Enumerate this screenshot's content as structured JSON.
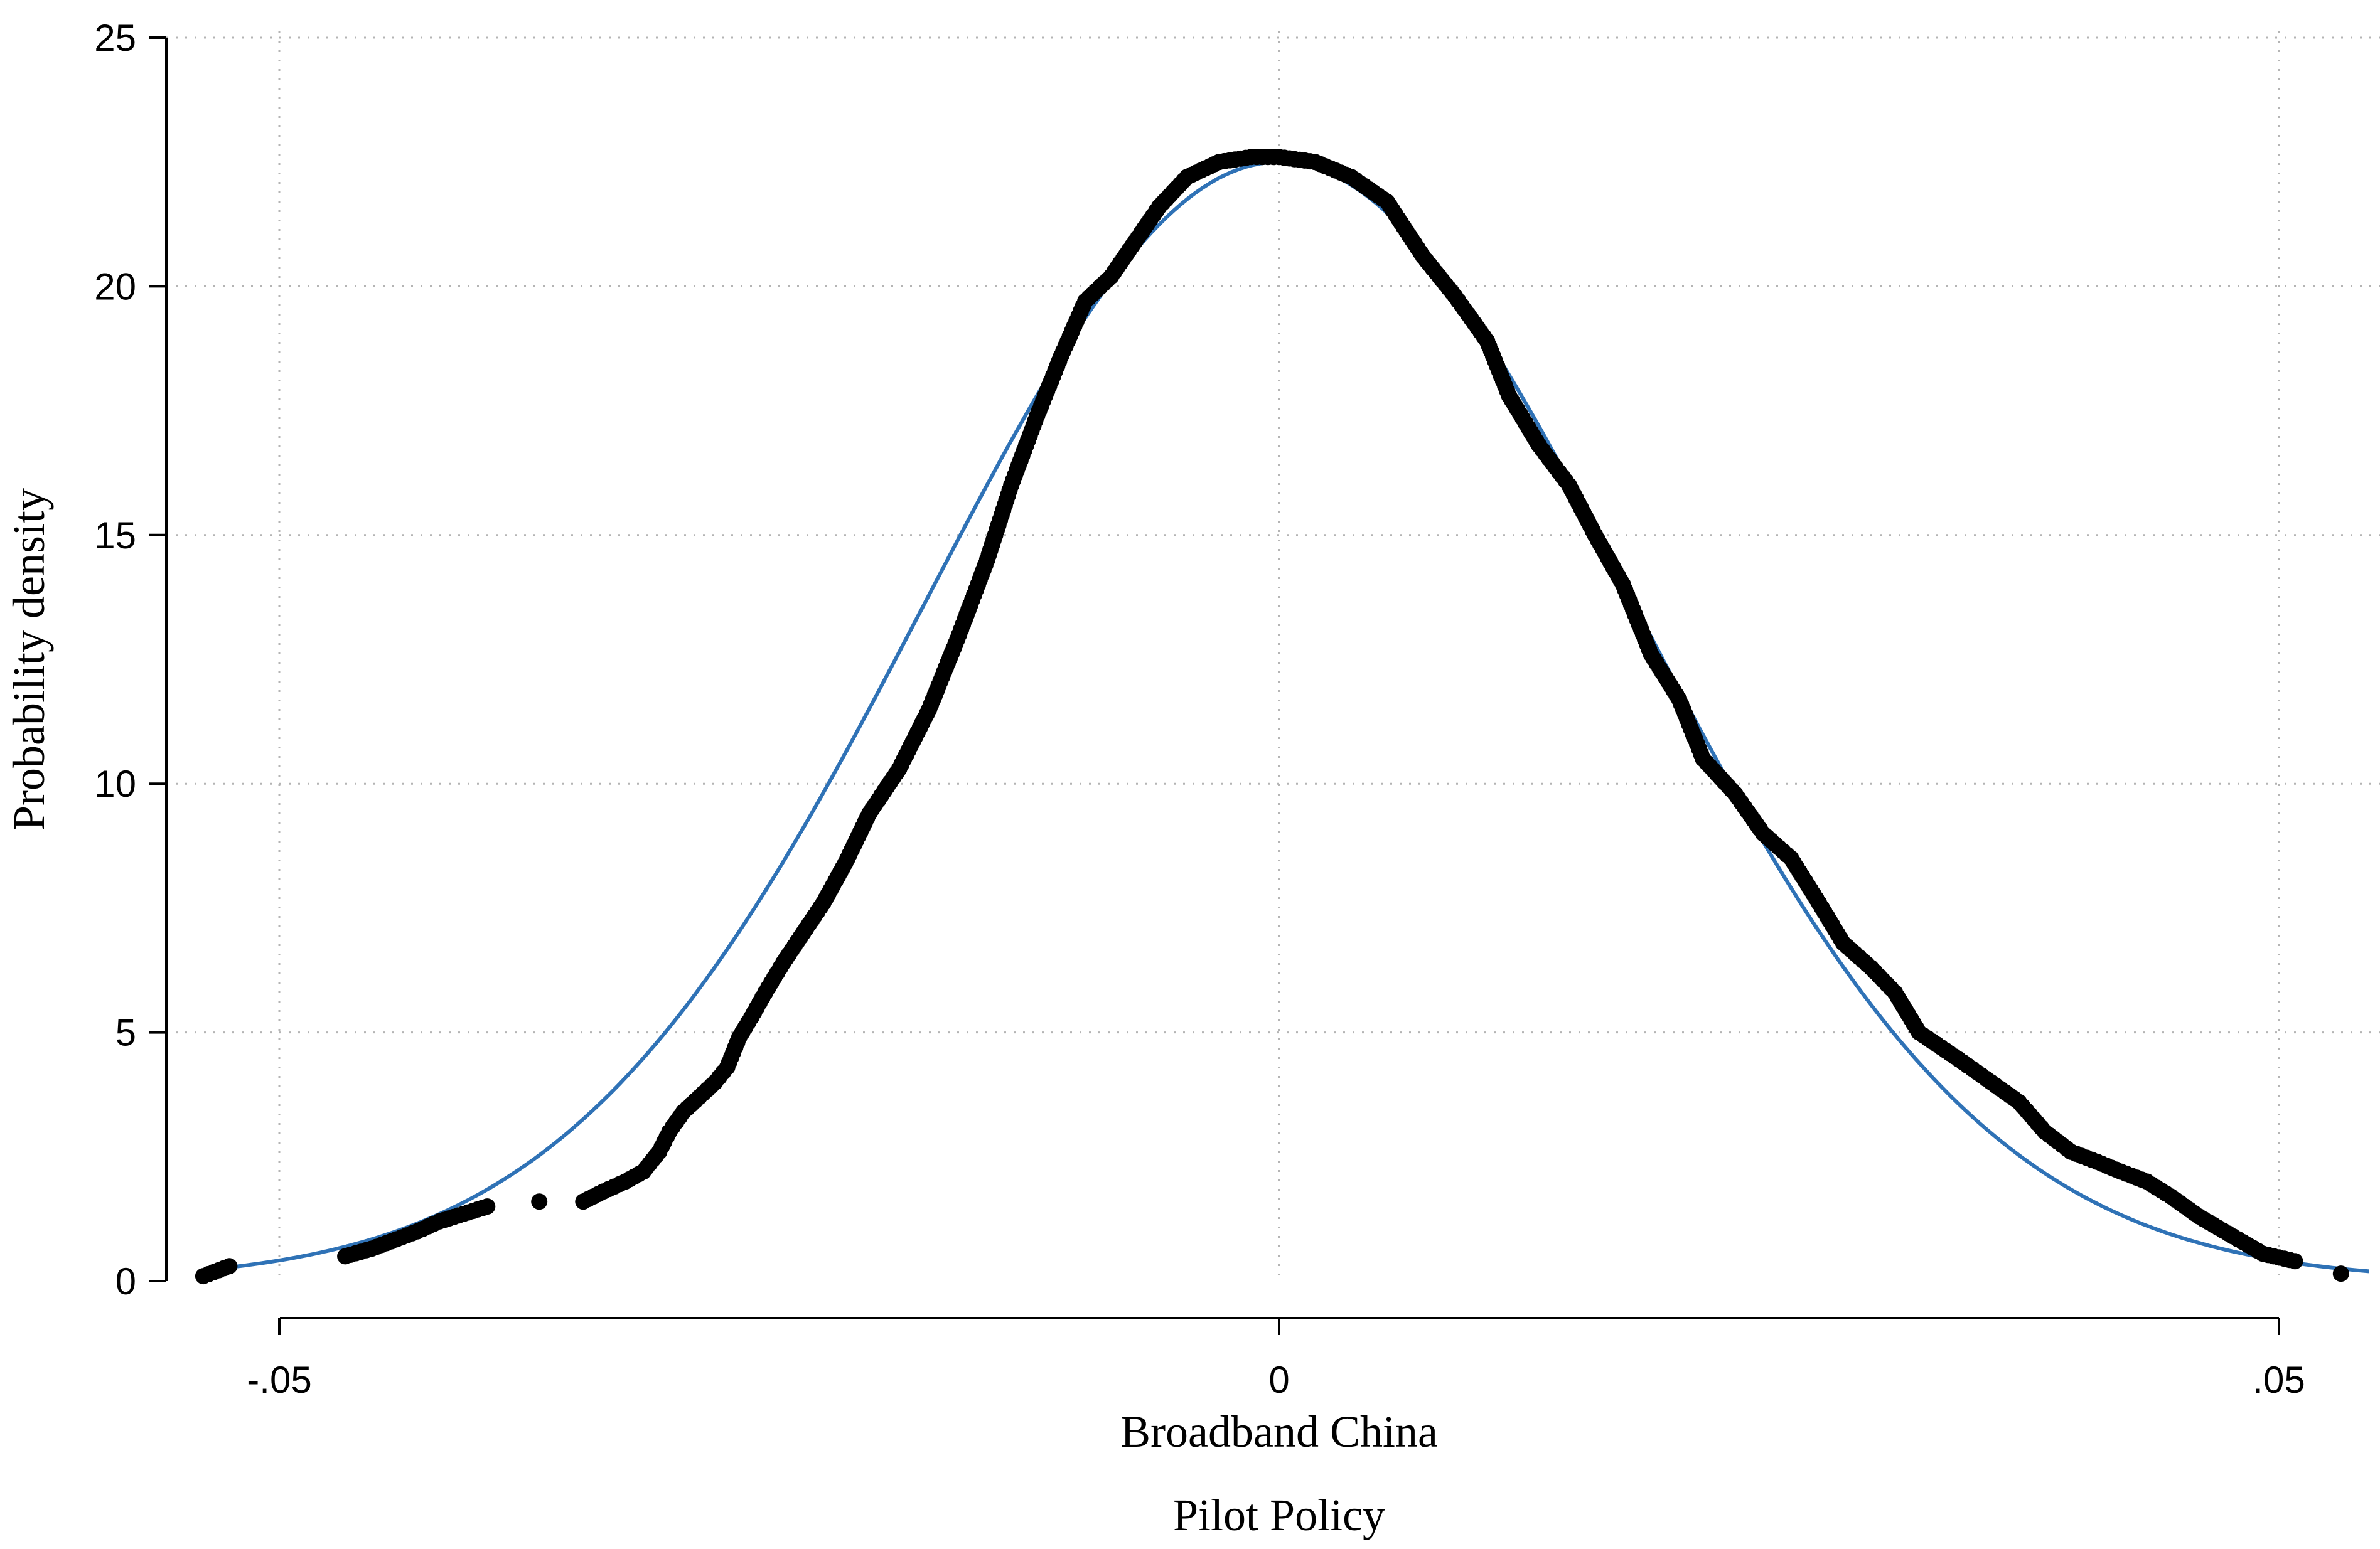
{
  "chart_data": {
    "type": "scatter",
    "title": "",
    "xlabel": "Broadband China",
    "xlabel_line2": "Pilot Policy",
    "ylabel": "Probability density",
    "xlim": [
      -0.0575,
      0.055
    ],
    "ylim": [
      0,
      25
    ],
    "x_ticks": [
      {
        "value": -0.05,
        "label": "-.05"
      },
      {
        "value": 0,
        "label": "0"
      },
      {
        "value": 0.05,
        "label": ".05"
      }
    ],
    "y_ticks": [
      {
        "value": 0,
        "label": "0"
      },
      {
        "value": 5,
        "label": "5"
      },
      {
        "value": 10,
        "label": "10"
      },
      {
        "value": 15,
        "label": "15"
      },
      {
        "value": 20,
        "label": "20"
      },
      {
        "value": 25,
        "label": "25"
      }
    ],
    "grid": true,
    "legend": "none",
    "series": [
      {
        "kind": "points",
        "color": "#000000",
        "x": [
          -0.0538,
          -0.0525,
          -0.0467,
          -0.0454,
          -0.0444,
          -0.0431,
          -0.042,
          -0.0408,
          -0.0396,
          -0.037,
          -0.0348,
          -0.0338,
          -0.0327,
          -0.0318,
          -0.031,
          -0.0305,
          -0.0298,
          -0.029,
          -0.0282,
          -0.0276,
          -0.027,
          -0.0264,
          -0.0257,
          -0.0248,
          -0.0238,
          -0.0228,
          -0.0217,
          -0.0205,
          -0.019,
          -0.0175,
          -0.016,
          -0.0146,
          -0.0134,
          -0.0121,
          -0.0109,
          -0.0097,
          -0.0084,
          -0.0072,
          -0.006,
          -0.0046,
          -0.003,
          -0.0014,
          0.0,
          0.0018,
          0.0036,
          0.0054,
          0.0072,
          0.0088,
          0.0104,
          0.0115,
          0.013,
          0.0145,
          0.0158,
          0.0172,
          0.0186,
          0.02,
          0.0212,
          0.0228,
          0.0242,
          0.0256,
          0.027,
          0.0282,
          0.0296,
          0.0308,
          0.032,
          0.0331,
          0.0342,
          0.0356,
          0.037,
          0.0383,
          0.0396,
          0.0409,
          0.0421,
          0.0434,
          0.0446,
          0.046,
          0.0477,
          0.0492,
          0.0508,
          0.0531
        ],
        "y": [
          0.1,
          0.3,
          0.5,
          0.65,
          0.8,
          1.0,
          1.2,
          1.35,
          1.5,
          1.6,
          1.6,
          1.8,
          2.0,
          2.2,
          2.6,
          3.0,
          3.4,
          3.7,
          4.0,
          4.3,
          4.9,
          5.3,
          5.8,
          6.4,
          7.0,
          7.6,
          8.4,
          9.4,
          10.3,
          11.5,
          13.0,
          14.5,
          16.0,
          17.4,
          18.6,
          19.7,
          20.2,
          20.9,
          21.6,
          22.2,
          22.5,
          22.6,
          22.6,
          22.5,
          22.2,
          21.7,
          20.6,
          19.8,
          18.9,
          17.8,
          16.8,
          16.0,
          15.0,
          14.0,
          12.6,
          11.7,
          10.5,
          9.8,
          9.0,
          8.5,
          7.6,
          6.8,
          6.3,
          5.8,
          5.0,
          4.7,
          4.4,
          4.0,
          3.6,
          3.0,
          2.6,
          2.4,
          2.2,
          2.0,
          1.7,
          1.3,
          0.9,
          0.55,
          0.4,
          0.15
        ]
      },
      {
        "kind": "fitted-normal-line",
        "color": "#2f72b6",
        "mean": 0.0,
        "peak_density": 22.5,
        "sd": 0.0177,
        "x_range": [
          -0.0535,
          0.0545
        ]
      }
    ]
  }
}
